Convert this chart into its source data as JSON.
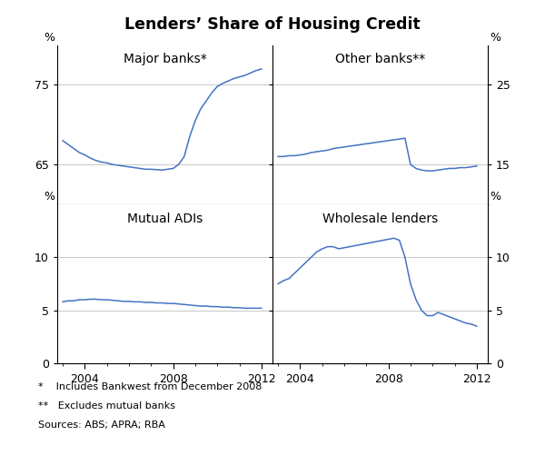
{
  "title": "Lenders’ Share of Housing Credit",
  "line_color": "#4472C4",
  "footnote1": "*    Includes Bankwest from December 2008",
  "footnote2": "**   Excludes mutual banks",
  "footnote3": "Sources: ABS; APRA; RBA",
  "panels": [
    {
      "label": "Major banks*",
      "position": "top-left",
      "ylim": [
        60,
        80
      ],
      "yticks": [
        65,
        75
      ],
      "ylabel_left": true,
      "ylabel_right": false,
      "xstart": 2002.75,
      "xend": 2012.5,
      "xticks": [
        2004,
        2008,
        2012
      ],
      "data_x": [
        2003.0,
        2003.25,
        2003.5,
        2003.75,
        2004.0,
        2004.25,
        2004.5,
        2004.75,
        2005.0,
        2005.25,
        2005.5,
        2005.75,
        2006.0,
        2006.25,
        2006.5,
        2006.75,
        2007.0,
        2007.25,
        2007.5,
        2007.75,
        2008.0,
        2008.25,
        2008.5,
        2008.75,
        2009.0,
        2009.25,
        2009.5,
        2009.75,
        2010.0,
        2010.25,
        2010.5,
        2010.75,
        2011.0,
        2011.25,
        2011.5,
        2011.75,
        2012.0
      ],
      "data_y": [
        68.0,
        67.5,
        67.0,
        66.5,
        66.2,
        65.8,
        65.5,
        65.3,
        65.2,
        65.0,
        64.9,
        64.8,
        64.7,
        64.6,
        64.5,
        64.4,
        64.4,
        64.35,
        64.3,
        64.4,
        64.5,
        65.0,
        66.0,
        68.5,
        70.5,
        72.0,
        73.0,
        74.0,
        74.8,
        75.2,
        75.5,
        75.8,
        76.0,
        76.2,
        76.5,
        76.8,
        77.0
      ]
    },
    {
      "label": "Other banks**",
      "position": "top-right",
      "ylim": [
        10,
        30
      ],
      "yticks": [
        15,
        25
      ],
      "ylabel_left": false,
      "ylabel_right": true,
      "xstart": 2002.75,
      "xend": 2012.5,
      "xticks": [
        2004,
        2008,
        2012
      ],
      "data_x": [
        2003.0,
        2003.25,
        2003.5,
        2003.75,
        2004.0,
        2004.25,
        2004.5,
        2004.75,
        2005.0,
        2005.25,
        2005.5,
        2005.75,
        2006.0,
        2006.25,
        2006.5,
        2006.75,
        2007.0,
        2007.25,
        2007.5,
        2007.75,
        2008.0,
        2008.25,
        2008.5,
        2008.75,
        2009.0,
        2009.25,
        2009.5,
        2009.75,
        2010.0,
        2010.25,
        2010.5,
        2010.75,
        2011.0,
        2011.25,
        2011.5,
        2011.75,
        2012.0
      ],
      "data_y": [
        16.0,
        16.0,
        16.1,
        16.1,
        16.2,
        16.3,
        16.5,
        16.6,
        16.7,
        16.8,
        17.0,
        17.1,
        17.2,
        17.3,
        17.4,
        17.5,
        17.6,
        17.7,
        17.8,
        17.9,
        18.0,
        18.1,
        18.2,
        18.3,
        15.0,
        14.5,
        14.3,
        14.2,
        14.2,
        14.3,
        14.4,
        14.5,
        14.5,
        14.6,
        14.6,
        14.7,
        14.8
      ]
    },
    {
      "label": "Mutual ADIs",
      "position": "bottom-left",
      "ylim": [
        0,
        15
      ],
      "yticks": [
        0,
        5,
        10
      ],
      "ylabel_left": true,
      "ylabel_right": false,
      "xstart": 2002.75,
      "xend": 2012.5,
      "xticks": [
        2004,
        2008,
        2012
      ],
      "data_x": [
        2003.0,
        2003.25,
        2003.5,
        2003.75,
        2004.0,
        2004.25,
        2004.5,
        2004.75,
        2005.0,
        2005.25,
        2005.5,
        2005.75,
        2006.0,
        2006.25,
        2006.5,
        2006.75,
        2007.0,
        2007.25,
        2007.5,
        2007.75,
        2008.0,
        2008.25,
        2008.5,
        2008.75,
        2009.0,
        2009.25,
        2009.5,
        2009.75,
        2010.0,
        2010.25,
        2010.5,
        2010.75,
        2011.0,
        2011.25,
        2011.5,
        2011.75,
        2012.0
      ],
      "data_y": [
        5.8,
        5.9,
        5.9,
        6.0,
        6.0,
        6.05,
        6.05,
        6.0,
        6.0,
        5.95,
        5.9,
        5.85,
        5.85,
        5.8,
        5.8,
        5.75,
        5.75,
        5.7,
        5.7,
        5.65,
        5.65,
        5.6,
        5.55,
        5.5,
        5.45,
        5.4,
        5.4,
        5.35,
        5.35,
        5.3,
        5.3,
        5.25,
        5.25,
        5.2,
        5.2,
        5.2,
        5.2
      ]
    },
    {
      "label": "Wholesale lenders",
      "position": "bottom-right",
      "ylim": [
        0,
        15
      ],
      "yticks": [
        0,
        5,
        10
      ],
      "ylabel_left": false,
      "ylabel_right": true,
      "xstart": 2002.75,
      "xend": 2012.5,
      "xticks": [
        2004,
        2008,
        2012
      ],
      "data_x": [
        2003.0,
        2003.25,
        2003.5,
        2003.75,
        2004.0,
        2004.25,
        2004.5,
        2004.75,
        2005.0,
        2005.25,
        2005.5,
        2005.75,
        2006.0,
        2006.25,
        2006.5,
        2006.75,
        2007.0,
        2007.25,
        2007.5,
        2007.75,
        2008.0,
        2008.25,
        2008.5,
        2008.75,
        2009.0,
        2009.25,
        2009.5,
        2009.75,
        2010.0,
        2010.25,
        2010.5,
        2010.75,
        2011.0,
        2011.25,
        2011.5,
        2011.75,
        2012.0
      ],
      "data_y": [
        7.5,
        7.8,
        8.0,
        8.5,
        9.0,
        9.5,
        10.0,
        10.5,
        10.8,
        11.0,
        11.0,
        10.8,
        10.9,
        11.0,
        11.1,
        11.2,
        11.3,
        11.4,
        11.5,
        11.6,
        11.7,
        11.8,
        11.6,
        10.0,
        7.5,
        6.0,
        5.0,
        4.5,
        4.5,
        4.8,
        4.6,
        4.4,
        4.2,
        4.0,
        3.8,
        3.7,
        3.5
      ]
    }
  ]
}
